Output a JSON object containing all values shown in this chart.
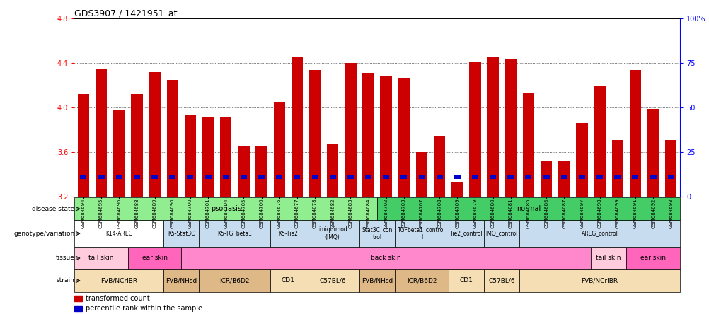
{
  "title": "GDS3907 / 1421951_at",
  "samples": [
    "GSM684694",
    "GSM684695",
    "GSM684696",
    "GSM684688",
    "GSM684689",
    "GSM684690",
    "GSM684700",
    "GSM684701",
    "GSM684704",
    "GSM684705",
    "GSM684706",
    "GSM684676",
    "GSM684677",
    "GSM684678",
    "GSM684682",
    "GSM684683",
    "GSM684684",
    "GSM684702",
    "GSM684703",
    "GSM684707",
    "GSM684708",
    "GSM684709",
    "GSM684679",
    "GSM684680",
    "GSM684681",
    "GSM684685",
    "GSM684686",
    "GSM684687",
    "GSM684697",
    "GSM684698",
    "GSM684699",
    "GSM684691",
    "GSM684692",
    "GSM684693"
  ],
  "bar_values": [
    4.12,
    4.35,
    3.98,
    4.12,
    4.32,
    4.25,
    3.94,
    3.92,
    3.92,
    3.65,
    3.65,
    4.05,
    4.46,
    4.34,
    3.67,
    4.4,
    4.31,
    4.28,
    4.27,
    3.6,
    3.74,
    3.33,
    4.41,
    4.46,
    4.43,
    4.13,
    3.52,
    3.52,
    3.86,
    4.19,
    3.71,
    4.34,
    3.99,
    3.71
  ],
  "percentile_pos": [
    3.36,
    3.36,
    3.36,
    3.36,
    3.36,
    3.36,
    3.36,
    3.36,
    3.36,
    3.36,
    3.36,
    3.36,
    3.36,
    3.36,
    3.36,
    3.36,
    3.36,
    3.36,
    3.36,
    3.36,
    3.36,
    3.36,
    3.36,
    3.36,
    3.36,
    3.36,
    3.36,
    3.36,
    3.36,
    3.36,
    3.36,
    3.36,
    3.36,
    3.36
  ],
  "ymin": 3.2,
  "ymax": 4.8,
  "yticks_left": [
    3.2,
    3.6,
    4.0,
    4.4,
    4.8
  ],
  "yticks_right_pct": [
    0,
    25,
    50,
    75,
    100
  ],
  "bar_color": "#CC0000",
  "percentile_color": "#0000CC",
  "disease_groups": [
    {
      "label": "psoriasis",
      "start": 0,
      "end": 17,
      "color": "#90EE90"
    },
    {
      "label": "normal",
      "start": 17,
      "end": 34,
      "color": "#44CC66"
    }
  ],
  "geno_groups": [
    {
      "label": "K14-AREG",
      "start": 0,
      "end": 5,
      "color": "#FFFFFF"
    },
    {
      "label": "K5-Stat3C",
      "start": 5,
      "end": 7,
      "color": "#C8DCF0"
    },
    {
      "label": "K5-TGFbeta1",
      "start": 7,
      "end": 11,
      "color": "#C8DCF0"
    },
    {
      "label": "K5-Tie2",
      "start": 11,
      "end": 13,
      "color": "#C8DCF0"
    },
    {
      "label": "imiquimod\n(IMQ)",
      "start": 13,
      "end": 16,
      "color": "#C8DCF0"
    },
    {
      "label": "Stat3C_con\ntrol",
      "start": 16,
      "end": 18,
      "color": "#C8DCF0"
    },
    {
      "label": "TGFbeta1_control\nl",
      "start": 18,
      "end": 21,
      "color": "#C8DCF0"
    },
    {
      "label": "Tie2_control",
      "start": 21,
      "end": 23,
      "color": "#C8DCF0"
    },
    {
      "label": "IMQ_control",
      "start": 23,
      "end": 25,
      "color": "#C8DCF0"
    },
    {
      "label": "AREG_control",
      "start": 25,
      "end": 34,
      "color": "#C8DCF0"
    }
  ],
  "tissue_groups": [
    {
      "label": "tail skin",
      "start": 0,
      "end": 3,
      "color": "#FFCCDD"
    },
    {
      "label": "ear skin",
      "start": 3,
      "end": 6,
      "color": "#FF66BB"
    },
    {
      "label": "back skin",
      "start": 6,
      "end": 29,
      "color": "#FF88CC"
    },
    {
      "label": "tail skin",
      "start": 29,
      "end": 31,
      "color": "#FFCCDD"
    },
    {
      "label": "ear skin",
      "start": 31,
      "end": 34,
      "color": "#FF66BB"
    }
  ],
  "strain_groups": [
    {
      "label": "FVB/NCrIBR",
      "start": 0,
      "end": 5,
      "color": "#F5DEB3"
    },
    {
      "label": "FVB/NHsd",
      "start": 5,
      "end": 7,
      "color": "#DEB887"
    },
    {
      "label": "ICR/B6D2",
      "start": 7,
      "end": 11,
      "color": "#DEB887"
    },
    {
      "label": "CD1",
      "start": 11,
      "end": 13,
      "color": "#F5DEB3"
    },
    {
      "label": "C57BL/6",
      "start": 13,
      "end": 16,
      "color": "#F5DEB3"
    },
    {
      "label": "FVB/NHsd",
      "start": 16,
      "end": 18,
      "color": "#DEB887"
    },
    {
      "label": "ICR/B6D2",
      "start": 18,
      "end": 21,
      "color": "#DEB887"
    },
    {
      "label": "CD1",
      "start": 21,
      "end": 23,
      "color": "#F5DEB3"
    },
    {
      "label": "C57BL/6",
      "start": 23,
      "end": 25,
      "color": "#F5DEB3"
    },
    {
      "label": "FVB/NCrIBR",
      "start": 25,
      "end": 34,
      "color": "#F5DEB3"
    }
  ],
  "row_labels": [
    "disease state",
    "genotype/variation",
    "tissue",
    "strain"
  ],
  "legend_items": [
    {
      "label": "transformed count",
      "color": "#CC0000"
    },
    {
      "label": "percentile rank within the sample",
      "color": "#0000CC"
    }
  ]
}
